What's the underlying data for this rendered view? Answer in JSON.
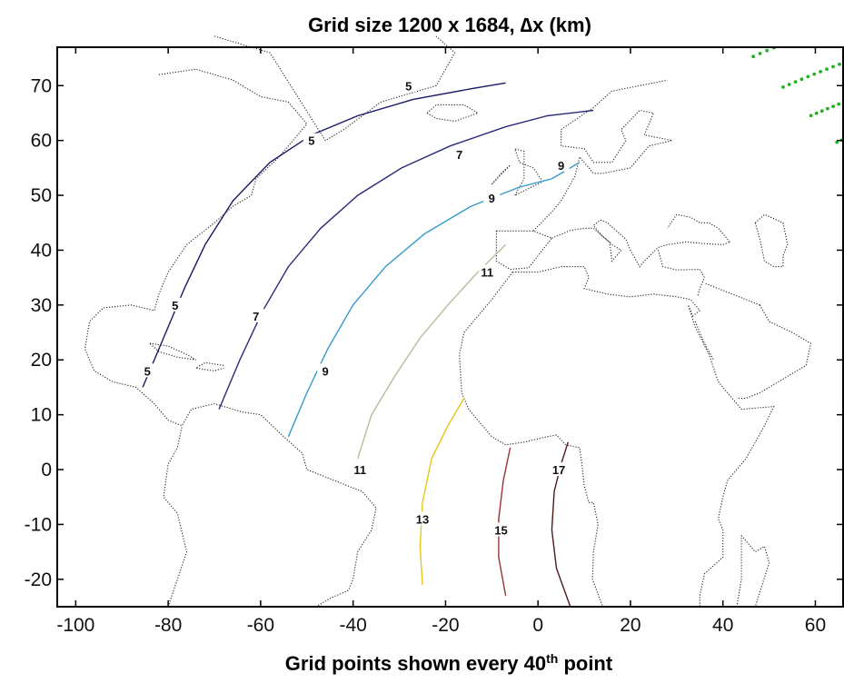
{
  "chart_data": {
    "type": "contour",
    "title": "Grid size 1200 x 1684, ∆x (km)",
    "xlabel": {
      "prefix": "Grid points shown every 40",
      "sup": "th",
      "suffix": " point"
    },
    "ylabel": "",
    "xlim": [
      -104,
      66
    ],
    "ylim": [
      -25,
      77
    ],
    "xticks": [
      -100,
      -80,
      -60,
      -40,
      -20,
      0,
      20,
      40,
      60
    ],
    "yticks": [
      -20,
      -10,
      0,
      10,
      20,
      30,
      40,
      50,
      60,
      70
    ],
    "grid": false,
    "contours": [
      {
        "label": "5",
        "color": "#1a1a66",
        "points": [
          [
            -85.5,
            15
          ],
          [
            -81,
            24
          ],
          [
            -76.5,
            33
          ],
          [
            -72,
            41
          ],
          [
            -66,
            49
          ],
          [
            -58,
            56
          ],
          [
            -49,
            61
          ],
          [
            -39,
            64.5
          ],
          [
            -27,
            67.5
          ],
          [
            -14,
            69.5
          ],
          [
            -7,
            70.5
          ]
        ],
        "label_positions": [
          [
            -84.5,
            18
          ],
          [
            -78.5,
            30
          ],
          [
            -49,
            60
          ],
          [
            -28,
            70
          ]
        ]
      },
      {
        "label": "7",
        "color": "#2a2a7a",
        "points": [
          [
            -69,
            11
          ],
          [
            -64.5,
            20
          ],
          [
            -59.5,
            29
          ],
          [
            -54,
            37
          ],
          [
            -47,
            44
          ],
          [
            -39,
            50
          ],
          [
            -29.5,
            55
          ],
          [
            -19,
            59
          ],
          [
            -7,
            62.5
          ],
          [
            2,
            64.5
          ],
          [
            12,
            65.5
          ]
        ],
        "label_positions": [
          [
            -61,
            28
          ],
          [
            -17,
            57.5
          ]
        ]
      },
      {
        "label": "9",
        "color": "#3399cc",
        "points": [
          [
            -54,
            6
          ],
          [
            -50,
            14
          ],
          [
            -45.5,
            22
          ],
          [
            -40,
            30
          ],
          [
            -33,
            37
          ],
          [
            -24.5,
            43
          ],
          [
            -14.5,
            48
          ],
          [
            -4,
            51.5
          ],
          [
            3,
            53
          ],
          [
            9,
            56
          ]
        ],
        "label_positions": [
          [
            -46,
            18
          ],
          [
            -10,
            49.5
          ],
          [
            5,
            55.5
          ]
        ]
      },
      {
        "label": "11",
        "color": "#bbbb99",
        "points": [
          [
            -39,
            2
          ],
          [
            -36,
            10
          ],
          [
            -31,
            17
          ],
          [
            -25.5,
            24
          ],
          [
            -19.5,
            30
          ],
          [
            -13,
            36
          ],
          [
            -7,
            41
          ]
        ],
        "label_positions": [
          [
            -38.5,
            0
          ],
          [
            -11,
            36
          ]
        ]
      },
      {
        "label": "13",
        "color": "#e6c619",
        "points": [
          [
            -25,
            -21
          ],
          [
            -25.5,
            -14
          ],
          [
            -25,
            -6
          ],
          [
            -23,
            2
          ],
          [
            -19.5,
            8
          ],
          [
            -16,
            13
          ]
        ],
        "label_positions": [
          [
            -25,
            -9
          ]
        ]
      },
      {
        "label": "15",
        "color": "#993333",
        "points": [
          [
            -7,
            -23
          ],
          [
            -8.5,
            -16
          ],
          [
            -8.5,
            -9
          ],
          [
            -7.5,
            -2
          ],
          [
            -6,
            4
          ]
        ],
        "label_positions": [
          [
            -8,
            -11
          ]
        ]
      },
      {
        "label": "17",
        "color": "#4d1a1a",
        "points": [
          [
            7,
            -25
          ],
          [
            4,
            -18
          ],
          [
            3,
            -11
          ],
          [
            3.5,
            -4
          ],
          [
            5,
            1
          ],
          [
            6.5,
            5
          ]
        ],
        "label_positions": [
          [
            4.5,
            0
          ]
        ]
      }
    ],
    "coastlines": [
      [
        [
          -82,
          72
        ],
        [
          -74,
          73
        ],
        [
          -66,
          71
        ],
        [
          -60,
          68
        ],
        [
          -54,
          67
        ],
        [
          -50,
          63
        ],
        [
          -56,
          57
        ],
        [
          -61,
          53
        ],
        [
          -62,
          50
        ],
        [
          -66,
          48
        ],
        [
          -70,
          45
        ],
        [
          -76,
          41
        ],
        [
          -80,
          36
        ],
        [
          -82,
          32
        ],
        [
          -83,
          29
        ],
        [
          -88,
          30
        ],
        [
          -94,
          29.5
        ],
        [
          -97,
          27
        ],
        [
          -98,
          22
        ],
        [
          -96,
          18
        ],
        [
          -92,
          16
        ],
        [
          -87,
          15
        ],
        [
          -83,
          12
        ],
        [
          -80,
          9
        ],
        [
          -77,
          8
        ],
        [
          -75,
          11
        ],
        [
          -70,
          12
        ],
        [
          -64,
          10.5
        ],
        [
          -60,
          10
        ],
        [
          -55,
          6
        ],
        [
          -51,
          3
        ],
        [
          -50,
          0
        ],
        [
          -44,
          -2
        ],
        [
          -38,
          -4
        ],
        [
          -35,
          -7
        ],
        [
          -36,
          -11
        ],
        [
          -39,
          -15
        ],
        [
          -40,
          -20
        ],
        [
          -41,
          -22
        ],
        [
          -45,
          -23.5
        ],
        [
          -48,
          -25
        ]
      ],
      [
        [
          -80,
          -25
        ],
        [
          -76,
          -15
        ],
        [
          -78,
          -8
        ],
        [
          -81,
          -5
        ],
        [
          -80,
          1
        ],
        [
          -78,
          4
        ],
        [
          -77,
          8
        ]
      ],
      [
        [
          -84,
          23
        ],
        [
          -80,
          22.5
        ],
        [
          -76,
          21
        ],
        [
          -74,
          20
        ],
        [
          -78,
          20.5
        ],
        [
          -82,
          21.5
        ],
        [
          -84,
          23
        ]
      ],
      [
        [
          -68,
          19
        ],
        [
          -72,
          19.5
        ],
        [
          -74,
          18.5
        ],
        [
          -70,
          18
        ],
        [
          -68,
          18.5
        ]
      ],
      [
        [
          -70,
          79
        ],
        [
          -58,
          76
        ],
        [
          -46,
          60
        ],
        [
          -42,
          62
        ],
        [
          -34,
          67
        ],
        [
          -22,
          70
        ],
        [
          -18,
          76
        ],
        [
          -22,
          79
        ]
      ],
      [
        [
          -24,
          65
        ],
        [
          -22,
          66.5
        ],
        [
          -16,
          66.5
        ],
        [
          -13,
          65
        ],
        [
          -18,
          63.5
        ],
        [
          -22,
          64
        ],
        [
          -24,
          65
        ]
      ],
      [
        [
          -10,
          52
        ],
        [
          -6,
          55.5
        ],
        [
          -8,
          54
        ],
        [
          -10,
          52
        ]
      ],
      [
        [
          -5,
          50
        ],
        [
          -3,
          53
        ],
        [
          -3,
          58
        ],
        [
          -5,
          58.5
        ],
        [
          -4,
          56
        ],
        [
          -1,
          55
        ],
        [
          1,
          52.5
        ],
        [
          -5,
          50
        ]
      ],
      [
        [
          -9,
          43.5
        ],
        [
          -9,
          38
        ],
        [
          -6,
          36.5
        ],
        [
          -2,
          36.8
        ],
        [
          0,
          39
        ],
        [
          3,
          42.2
        ],
        [
          -1,
          43.5
        ],
        [
          -9,
          43.5
        ]
      ],
      [
        [
          -5.5,
          36
        ],
        [
          -10,
          31
        ],
        [
          -16,
          25
        ],
        [
          -17,
          21
        ],
        [
          -16.5,
          14
        ],
        [
          -15,
          11
        ],
        [
          -13,
          9
        ],
        [
          -10,
          6
        ],
        [
          -7,
          4.5
        ],
        [
          -3,
          5
        ],
        [
          2,
          6
        ],
        [
          4,
          6.3
        ],
        [
          6,
          4.5
        ],
        [
          9,
          4
        ],
        [
          9.5,
          1
        ],
        [
          10,
          -3
        ],
        [
          11,
          -6
        ],
        [
          12,
          -6
        ],
        [
          13,
          -10
        ],
        [
          12,
          -15
        ],
        [
          11.8,
          -20
        ],
        [
          14,
          -25
        ]
      ],
      [
        [
          -5.5,
          36
        ],
        [
          0,
          36
        ],
        [
          5,
          37
        ],
        [
          10,
          37
        ],
        [
          11,
          35
        ],
        [
          10,
          33
        ],
        [
          15,
          32
        ],
        [
          20,
          31.5
        ],
        [
          25,
          32
        ],
        [
          30,
          31.5
        ],
        [
          33,
          31
        ],
        [
          35,
          29
        ],
        [
          33.5,
          28
        ],
        [
          32.5,
          30
        ],
        [
          34,
          26
        ],
        [
          37,
          21
        ],
        [
          39,
          16
        ],
        [
          42,
          13
        ],
        [
          44,
          11
        ],
        [
          51,
          11.5
        ],
        [
          49,
          8
        ],
        [
          45,
          2
        ],
        [
          41,
          -2
        ],
        [
          40,
          -5
        ],
        [
          39,
          -9
        ],
        [
          40,
          -11
        ],
        [
          40,
          -16
        ],
        [
          36,
          -19
        ],
        [
          35,
          -23
        ],
        [
          35,
          -25
        ]
      ],
      [
        [
          34,
          27
        ],
        [
          36,
          23
        ],
        [
          38,
          20
        ]
      ],
      [
        [
          -1,
          43.5
        ],
        [
          3,
          47
        ],
        [
          5,
          49
        ],
        [
          8,
          53.5
        ],
        [
          9,
          57
        ],
        [
          10,
          56
        ],
        [
          12,
          54
        ],
        [
          14,
          54
        ],
        [
          20,
          55
        ],
        [
          24,
          59
        ],
        [
          29,
          60
        ],
        [
          23,
          61
        ],
        [
          25,
          65
        ],
        [
          22,
          65.5
        ],
        [
          18,
          62
        ],
        [
          19,
          60
        ],
        [
          16,
          56
        ],
        [
          12,
          56
        ],
        [
          10,
          58.5
        ],
        [
          5,
          59
        ],
        [
          5,
          62
        ],
        [
          12,
          66
        ],
        [
          16,
          69
        ],
        [
          22,
          70
        ],
        [
          28,
          71
        ]
      ],
      [
        [
          3,
          42.2
        ],
        [
          7,
          43.6
        ],
        [
          10,
          44
        ],
        [
          12,
          44
        ],
        [
          16,
          41
        ],
        [
          18,
          40
        ],
        [
          16,
          38
        ],
        [
          15.5,
          41.5
        ],
        [
          14,
          42.5
        ],
        [
          12,
          44.5
        ],
        [
          13.5,
          45.5
        ]
      ],
      [
        [
          13.5,
          45.5
        ],
        [
          15,
          45
        ],
        [
          19,
          42
        ],
        [
          20,
          40
        ],
        [
          22,
          37
        ],
        [
          23,
          38
        ],
        [
          26,
          40.5
        ],
        [
          28,
          41
        ],
        [
          32,
          41.5
        ],
        [
          36,
          41.2
        ],
        [
          40,
          41
        ],
        [
          41.5,
          41.5
        ]
      ],
      [
        [
          26,
          40
        ],
        [
          27,
          37
        ],
        [
          30,
          36.4
        ],
        [
          35,
          36.5
        ],
        [
          36,
          35
        ],
        [
          35,
          33
        ],
        [
          34.5,
          31.5
        ]
      ],
      [
        [
          41.5,
          41.5
        ],
        [
          39,
          44
        ],
        [
          37,
          45
        ],
        [
          35,
          45
        ],
        [
          33,
          46
        ],
        [
          30,
          46.5
        ],
        [
          28,
          44
        ]
      ],
      [
        [
          47,
          45
        ],
        [
          49,
          46.5
        ],
        [
          53,
          45
        ],
        [
          54,
          41
        ],
        [
          53,
          39
        ],
        [
          53,
          37
        ],
        [
          51,
          37
        ],
        [
          49,
          38
        ],
        [
          48,
          42
        ],
        [
          47,
          45
        ]
      ],
      [
        [
          48,
          30
        ],
        [
          50,
          27
        ],
        [
          55,
          25
        ],
        [
          57,
          24
        ],
        [
          59,
          23
        ],
        [
          58,
          19
        ],
        [
          56,
          18
        ],
        [
          52,
          16
        ],
        [
          48,
          14
        ],
        [
          45,
          13
        ],
        [
          43,
          13
        ]
      ],
      [
        [
          48,
          30
        ],
        [
          45,
          31
        ],
        [
          39,
          33
        ],
        [
          36,
          34
        ]
      ],
      [
        [
          44,
          -12
        ],
        [
          47,
          -15
        ],
        [
          49,
          -14
        ],
        [
          50,
          -17
        ],
        [
          47,
          -25
        ]
      ],
      [
        [
          43,
          -25
        ],
        [
          44,
          -20
        ],
        [
          44,
          -16
        ],
        [
          44,
          -12
        ]
      ]
    ]
  }
}
